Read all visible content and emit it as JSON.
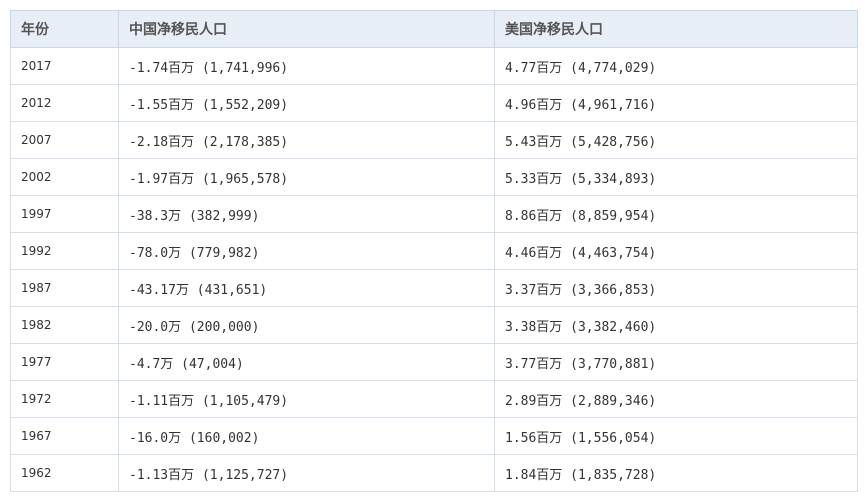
{
  "table": {
    "headers": [
      "年份",
      "中国净移民人口",
      "美国净移民人口"
    ],
    "rows": [
      [
        "2017",
        "-1.74百万 (1,741,996)",
        "4.77百万 (4,774,029)"
      ],
      [
        "2012",
        "-1.55百万 (1,552,209)",
        "4.96百万 (4,961,716)"
      ],
      [
        "2007",
        "-2.18百万 (2,178,385)",
        "5.43百万 (5,428,756)"
      ],
      [
        "2002",
        "-1.97百万 (1,965,578)",
        "5.33百万 (5,334,893)"
      ],
      [
        "1997",
        "-38.3万 (382,999)",
        "8.86百万 (8,859,954)"
      ],
      [
        "1992",
        "-78.0万 (779,982)",
        "4.46百万 (4,463,754)"
      ],
      [
        "1987",
        "-43.17万 (431,651)",
        "3.37百万 (3,366,853)"
      ],
      [
        "1982",
        "-20.0万 (200,000)",
        "3.38百万 (3,382,460)"
      ],
      [
        "1977",
        "-4.7万 (47,004)",
        "3.77百万 (3,770,881)"
      ],
      [
        "1972",
        "-1.11百万 (1,105,479)",
        "2.89百万 (2,889,346)"
      ],
      [
        "1967",
        "-16.0万 (160,002)",
        "1.56百万 (1,556,054)"
      ],
      [
        "1962",
        "-1.13百万 (1,125,727)",
        "1.84百万 (1,835,728)"
      ]
    ]
  }
}
